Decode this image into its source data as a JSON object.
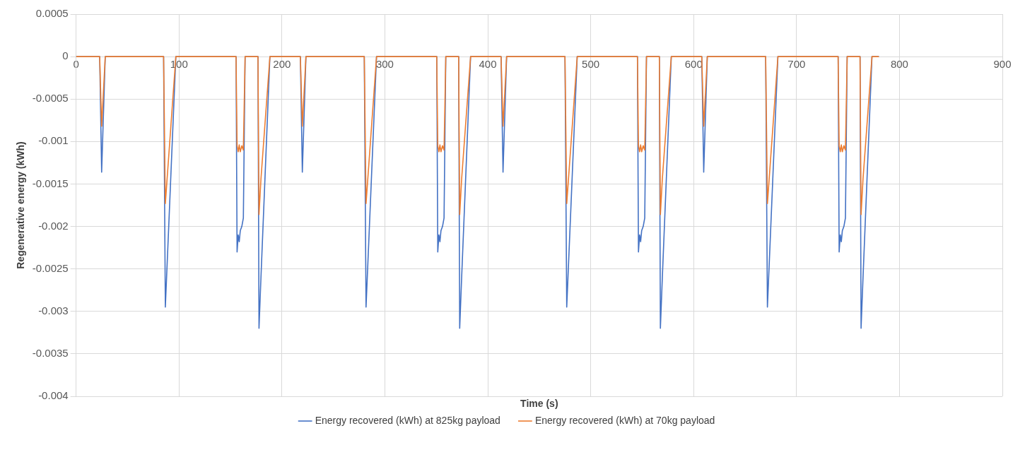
{
  "chart_data": {
    "type": "line",
    "xlabel": "Time (s)",
    "ylabel": "Regenerative energy (kWh)",
    "x": [
      0,
      22.9,
      24.8,
      28.3,
      85,
      86.7,
      96.9,
      155.4,
      156.4,
      157.5,
      158.5,
      159.5,
      161,
      162.5,
      164.2,
      176.7,
      177.7,
      179.6,
      188.3,
      217.9,
      219.8,
      223.3,
      280,
      281.7,
      291.9,
      350.4,
      351.4,
      352.5,
      353.5,
      354.5,
      356,
      357.5,
      359.2,
      371.7,
      372.7,
      374.6,
      383.3,
      412.9,
      414.8,
      418.3,
      475,
      476.7,
      486.9,
      545.4,
      546.4,
      547.5,
      548.5,
      549.5,
      551,
      552.5,
      554.2,
      566.7,
      567.7,
      569.6,
      578.3,
      607.9,
      609.8,
      613.3,
      670,
      671.7,
      681.9,
      740.4,
      741.4,
      742.5,
      743.5,
      744.5,
      746,
      747.5,
      749.2,
      761.7,
      762.7,
      764.6,
      773.3,
      780
    ],
    "series": [
      {
        "name": "Energy recovered (kWh) at 825kg payload",
        "color": "#4472c4",
        "values": [
          0,
          0,
          -0.00136,
          0,
          0,
          -0.00295,
          0,
          0,
          -0.0023,
          -0.0021,
          -0.00218,
          -0.00205,
          -0.002,
          -0.0019,
          0,
          0,
          -0.0032,
          -0.0026,
          0,
          0,
          -0.00136,
          0,
          0,
          -0.00295,
          0,
          0,
          -0.0023,
          -0.0021,
          -0.00218,
          -0.00205,
          -0.002,
          -0.0019,
          0,
          0,
          -0.0032,
          -0.0026,
          0,
          0,
          -0.00136,
          0,
          0,
          -0.00295,
          0,
          0,
          -0.0023,
          -0.0021,
          -0.00218,
          -0.00205,
          -0.002,
          -0.0019,
          0,
          0,
          -0.0032,
          -0.0026,
          0,
          0,
          -0.00136,
          0,
          0,
          -0.00295,
          0,
          0,
          -0.0023,
          -0.0021,
          -0.00218,
          -0.00205,
          -0.002,
          -0.0019,
          0,
          0,
          -0.0032,
          -0.0026,
          0,
          0
        ]
      },
      {
        "name": "Energy recovered (kWh) at 70kg payload",
        "color": "#ed7d31",
        "values": [
          0,
          0,
          -0.00082,
          0,
          0,
          -0.00173,
          0,
          0,
          -0.00105,
          -0.00112,
          -0.00104,
          -0.00112,
          -0.00105,
          -0.0011,
          0,
          0,
          -0.00186,
          -0.00144,
          0,
          0,
          -0.00082,
          0,
          0,
          -0.00173,
          0,
          0,
          -0.00105,
          -0.00112,
          -0.00104,
          -0.00112,
          -0.00105,
          -0.0011,
          0,
          0,
          -0.00186,
          -0.00144,
          0,
          0,
          -0.00082,
          0,
          0,
          -0.00173,
          0,
          0,
          -0.00105,
          -0.00112,
          -0.00104,
          -0.00112,
          -0.00105,
          -0.0011,
          0,
          0,
          -0.00186,
          -0.00144,
          0,
          0,
          -0.00082,
          0,
          0,
          -0.00173,
          0,
          0,
          -0.00105,
          -0.00112,
          -0.00104,
          -0.00112,
          -0.00105,
          -0.0011,
          0,
          0,
          -0.00186,
          -0.00144,
          0,
          0
        ]
      }
    ],
    "xlim": [
      0,
      900
    ],
    "xticks": [
      0,
      100,
      200,
      300,
      400,
      500,
      600,
      700,
      800,
      900
    ],
    "ylim": [
      -0.004,
      0.0005
    ],
    "yticks": [
      -0.004,
      -0.0035,
      -0.003,
      -0.0025,
      -0.002,
      -0.0015,
      -0.001,
      -0.0005,
      0,
      0.0005
    ],
    "grid": true,
    "legend": "bottom",
    "marker": "none",
    "line_style": "solid"
  }
}
